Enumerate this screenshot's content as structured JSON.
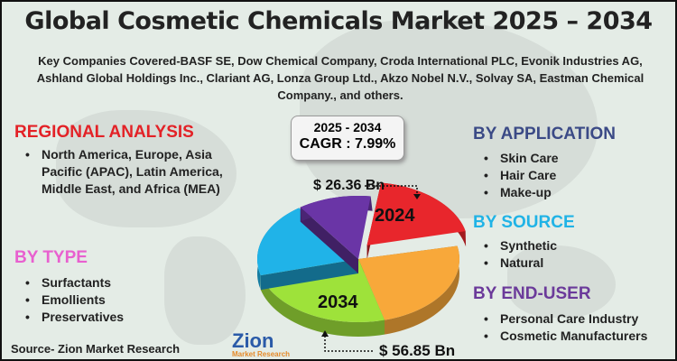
{
  "title": "Global Cosmetic Chemicals Market 2025 – 2034",
  "companies": "Key Companies Covered-BASF SE, Dow Chemical Company, Croda International PLC, Evonik Industries AG, Ashland Global Holdings Inc., Clariant AG, Lonza Group Ltd., Akzo Nobel N.V., Solvay SA, Eastman Chemical Company., and others.",
  "regional": {
    "heading": "REGIONAL ANALYSIS",
    "color": "#e32227",
    "items": [
      "North America, Europe, Asia Pacific (APAC), Latin America, Middle East, and Africa (MEA)"
    ]
  },
  "by_type": {
    "heading": "BY TYPE",
    "color": "#e860cf",
    "items": [
      "Surfactants",
      "Emollients",
      "Preservatives"
    ]
  },
  "by_application": {
    "heading": "BY APPLICATION",
    "color": "#3b4a86",
    "items": [
      "Skin Care",
      "Hair Care",
      "Make-up"
    ]
  },
  "by_source": {
    "heading": "BY SOURCE",
    "color": "#20b3e6",
    "items": [
      "Synthetic",
      "Natural"
    ]
  },
  "by_end_user": {
    "heading": "BY END-USER",
    "color": "#6b3a9a",
    "items": [
      "Personal Care Industry",
      "Cosmetic Manufacturers"
    ]
  },
  "cagr": {
    "period": "2025 - 2034",
    "label": "CAGR : 7.99%"
  },
  "values": {
    "start": "$ 26.36 Bn",
    "end": "$ 56.85 Bn",
    "start_year": "2024",
    "end_year": "2034"
  },
  "pie_colors": [
    "#e8262c",
    "#f8a83a",
    "#9ee23a",
    "#20b3e8",
    "#6a35a6"
  ],
  "source": "Source- Zion Market Research",
  "logo": {
    "name": "Zion",
    "sub": "Market Research"
  }
}
